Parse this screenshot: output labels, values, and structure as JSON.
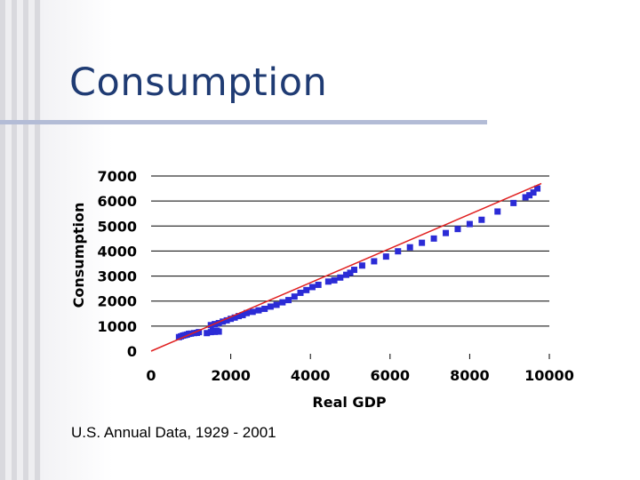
{
  "slide": {
    "title": "Consumption",
    "caption": "U.S. Annual Data, 1929 - 2001"
  },
  "colors": {
    "title": "#1f3b73",
    "points": "#2b2bd6",
    "fit_line": "#e02020",
    "grid": "#000000"
  },
  "chart_data": {
    "type": "scatter",
    "title": "",
    "xlabel": "Real GDP",
    "ylabel": "Consumption",
    "xlim": [
      0,
      10000
    ],
    "ylim": [
      0,
      7000
    ],
    "x_ticks": [
      "0",
      "2000",
      "4000",
      "6000",
      "8000",
      "10000"
    ],
    "y_ticks": [
      "0",
      "1000",
      "2000",
      "3000",
      "4000",
      "5000",
      "6000",
      "7000"
    ],
    "grid": "horizontal",
    "legend": "none",
    "marker": "square",
    "trendline": {
      "type": "linear",
      "from": [
        0,
        0
      ],
      "to": [
        9800,
        6700
      ]
    },
    "series": [
      {
        "points": [
          [
            700,
            560
          ],
          [
            750,
            590
          ],
          [
            800,
            620
          ],
          [
            850,
            640
          ],
          [
            900,
            660
          ],
          [
            950,
            690
          ],
          [
            1000,
            700
          ],
          [
            1080,
            720
          ],
          [
            1150,
            730
          ],
          [
            1200,
            760
          ],
          [
            1400,
            720
          ],
          [
            1500,
            760
          ],
          [
            1550,
            800
          ],
          [
            1600,
            770
          ],
          [
            1650,
            820
          ],
          [
            1700,
            780
          ],
          [
            1500,
            1040
          ],
          [
            1600,
            1080
          ],
          [
            1700,
            1120
          ],
          [
            1800,
            1180
          ],
          [
            1900,
            1230
          ],
          [
            2000,
            1290
          ],
          [
            2100,
            1340
          ],
          [
            2200,
            1400
          ],
          [
            2300,
            1440
          ],
          [
            2400,
            1520
          ],
          [
            2550,
            1570
          ],
          [
            2700,
            1630
          ],
          [
            2850,
            1690
          ],
          [
            3000,
            1780
          ],
          [
            3150,
            1850
          ],
          [
            3300,
            1950
          ],
          [
            3450,
            2040
          ],
          [
            3600,
            2180
          ],
          [
            3750,
            2330
          ],
          [
            3900,
            2440
          ],
          [
            4050,
            2560
          ],
          [
            4200,
            2650
          ],
          [
            4450,
            2780
          ],
          [
            4600,
            2830
          ],
          [
            4750,
            2940
          ],
          [
            4900,
            3050
          ],
          [
            5000,
            3130
          ],
          [
            5100,
            3250
          ],
          [
            5300,
            3420
          ],
          [
            5600,
            3590
          ],
          [
            5900,
            3780
          ],
          [
            6200,
            3990
          ],
          [
            6500,
            4150
          ],
          [
            6800,
            4330
          ],
          [
            7100,
            4500
          ],
          [
            7400,
            4720
          ],
          [
            7700,
            4880
          ],
          [
            8000,
            5080
          ],
          [
            8300,
            5250
          ],
          [
            8700,
            5580
          ],
          [
            9100,
            5920
          ],
          [
            9400,
            6150
          ],
          [
            9500,
            6230
          ],
          [
            9600,
            6340
          ],
          [
            9700,
            6500
          ]
        ]
      }
    ]
  }
}
